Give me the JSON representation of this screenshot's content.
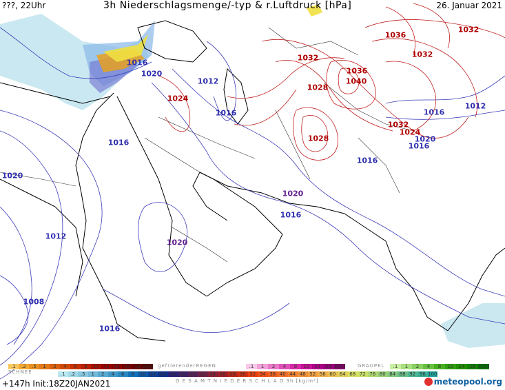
{
  "header": {
    "left": "???, 22Uhr",
    "title": "3h Niederschlagsmenge/-typ & r.Luftdruck [hPa]",
    "date": "26. Januar 2021"
  },
  "isobar_labels": [
    {
      "text": "1016",
      "color": "blue"
    },
    {
      "text": "1020",
      "color": "blue"
    },
    {
      "text": "1012",
      "color": "blue"
    },
    {
      "text": "1024",
      "color": "red"
    },
    {
      "text": "1016",
      "color": "blue"
    },
    {
      "text": "1016",
      "color": "blue"
    },
    {
      "text": "1020",
      "color": "blue"
    },
    {
      "text": "1032",
      "color": "red"
    },
    {
      "text": "1028",
      "color": "red"
    },
    {
      "text": "1036",
      "color": "red"
    },
    {
      "text": "1040",
      "color": "red"
    },
    {
      "text": "1028",
      "color": "red"
    },
    {
      "text": "1036",
      "color": "red"
    },
    {
      "text": "1032",
      "color": "red"
    },
    {
      "text": "1032",
      "color": "red"
    },
    {
      "text": "1032",
      "color": "red"
    },
    {
      "text": "1024",
      "color": "red"
    },
    {
      "text": "1016",
      "color": "blue"
    },
    {
      "text": "1012",
      "color": "blue"
    },
    {
      "text": "1020",
      "color": "blue"
    },
    {
      "text": "1016",
      "color": "blue"
    },
    {
      "text": "1016",
      "color": "blue"
    },
    {
      "text": "1020",
      "color": "purple"
    },
    {
      "text": "1016",
      "color": "blue"
    },
    {
      "text": "1020",
      "color": "purple"
    },
    {
      "text": "1012",
      "color": "blue"
    },
    {
      "text": "1008",
      "color": "blue"
    },
    {
      "text": "1016",
      "color": "blue"
    }
  ],
  "colors": {
    "isobar_low": "#3a3ab8",
    "isobar_high": "#c02020",
    "coast": "#000000",
    "border": "#333333",
    "rain_light": "#a8d8e8",
    "snow": "#7070d0",
    "freezing_rain": "#e8a020",
    "yellow_precip": "#f0e040"
  },
  "legend": {
    "snow_label": "SCHNEE",
    "freezing_label": "gefrierenderREGEN",
    "graupel_label": "GRAUPEL",
    "total_label": "G E S A M T N I E D E R S C H L A G  3h  [kg/m²]",
    "row1_left": [
      ".1",
      ".2",
      ".5",
      "1",
      "2",
      "4",
      "6",
      "8",
      "10",
      "12",
      "14",
      "16",
      "18",
      "2025+"
    ],
    "row1_mid": [
      ".1",
      "1",
      "2",
      "4",
      "8",
      "10",
      "14",
      "16",
      "2025+"
    ],
    "row1_right": [
      ".1",
      "1",
      "2",
      "4",
      "8",
      "10",
      "14",
      "16",
      "2025+"
    ],
    "row2": [
      ".1",
      ".2",
      ".5",
      "1",
      "2",
      "4",
      "6",
      "8",
      "10",
      "12",
      "14",
      "16",
      "18",
      "20",
      "22",
      "24",
      "26",
      "28",
      "30",
      "32",
      "34",
      "36",
      "40",
      "44",
      "48",
      "52",
      "56",
      "60",
      "64",
      "68",
      "72",
      "76",
      "80",
      "84",
      "88",
      "92",
      "96",
      "100"
    ]
  },
  "footer": {
    "info": "+147h  Init:18Z20JAN2021",
    "logo": "meteopool",
    "logo_suffix": ".org"
  }
}
